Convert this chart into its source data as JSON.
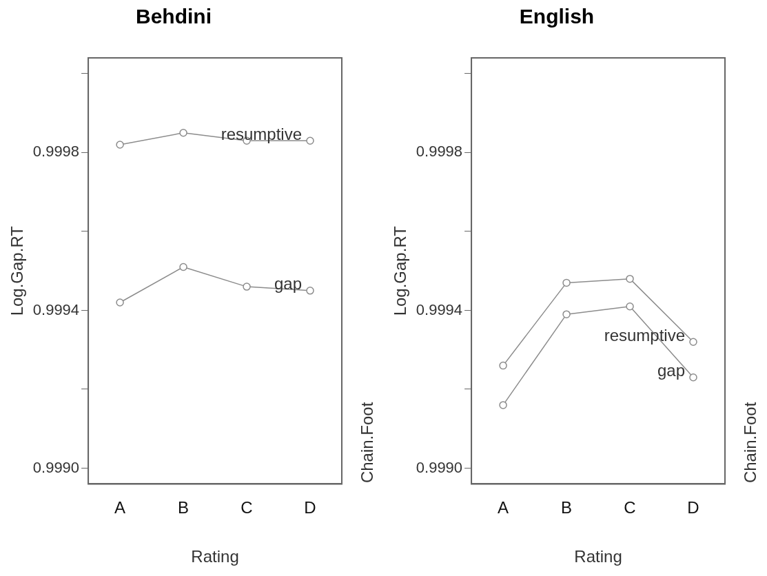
{
  "chart_data": [
    {
      "type": "line",
      "title": "Behdini",
      "xlabel": "Rating",
      "ylabel": "Log.Gap.RT",
      "legend_title": "Chain.Foot",
      "categories": [
        "A",
        "B",
        "C",
        "D"
      ],
      "marker": "circle",
      "grid": false,
      "ylim": [
        0.99896,
        1.00004
      ],
      "yticks": [
        {
          "value": 0.999,
          "label": "0.9990"
        },
        {
          "value": 0.9992,
          "label": null
        },
        {
          "value": 0.9994,
          "label": "0.9994"
        },
        {
          "value": 0.9996,
          "label": null
        },
        {
          "value": 0.9998,
          "label": "0.9998"
        },
        {
          "value": 1.0,
          "label": null
        }
      ],
      "series": [
        {
          "name": "resumptive",
          "color": "#8c8c8c",
          "values": [
            0.99982,
            0.99985,
            0.99983,
            0.99983
          ]
        },
        {
          "name": "gap",
          "color": "#8c8c8c",
          "values": [
            0.99942,
            0.99951,
            0.99946,
            0.99945
          ]
        }
      ]
    },
    {
      "type": "line",
      "title": "English",
      "xlabel": "Rating",
      "ylabel": "Log.Gap.RT",
      "legend_title": "Chain.Foot",
      "categories": [
        "A",
        "B",
        "C",
        "D"
      ],
      "marker": "circle",
      "grid": false,
      "ylim": [
        0.99896,
        1.00004
      ],
      "yticks": [
        {
          "value": 0.999,
          "label": "0.9990"
        },
        {
          "value": 0.9992,
          "label": null
        },
        {
          "value": 0.9994,
          "label": "0.9994"
        },
        {
          "value": 0.9996,
          "label": null
        },
        {
          "value": 0.9998,
          "label": "0.9998"
        },
        {
          "value": 1.0,
          "label": null
        }
      ],
      "series": [
        {
          "name": "resumptive",
          "color": "#8c8c8c",
          "values": [
            0.99926,
            0.99947,
            0.99948,
            0.99932
          ]
        },
        {
          "name": "gap",
          "color": "#8c8c8c",
          "values": [
            0.99916,
            0.99939,
            0.99941,
            0.99923
          ]
        }
      ]
    }
  ]
}
